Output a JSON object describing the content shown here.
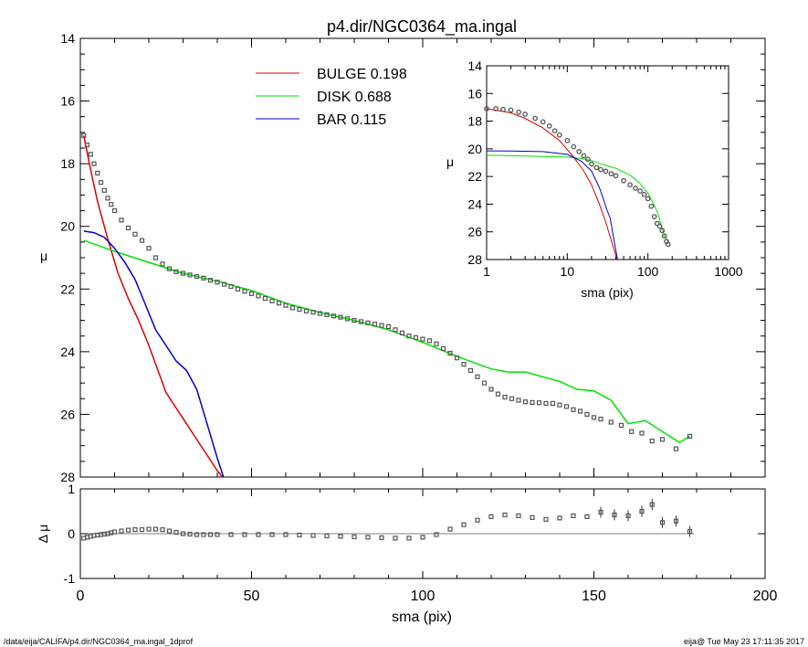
{
  "title": "p4.dir/NGC0364_ma.ingal",
  "footer_left": "/data/eija/CALIFA/p4.dir/NGC0364_ma.ingal_1dprof",
  "footer_right": "eija@  Tue May 23 17:11:35 2017",
  "colors": {
    "bulge": "#dd0000",
    "disk": "#00e000",
    "bar": "#0000cc",
    "data": "#555555",
    "axis": "#000000"
  },
  "chart_data": [
    {
      "type": "line",
      "panel": "main",
      "xlabel": "",
      "ylabel": "μ",
      "xlim": [
        0,
        200
      ],
      "ylim": [
        28,
        14
      ],
      "yticks": [
        "14",
        "16",
        "18",
        "20",
        "22",
        "24",
        "26",
        "28"
      ],
      "legend": [
        {
          "name": "BULGE",
          "value": "0.198",
          "color": "#dd0000"
        },
        {
          "name": "DISK",
          "value": "0.688",
          "color": "#00e000"
        },
        {
          "name": "BAR",
          "value": "0.115",
          "color": "#0000cc"
        }
      ],
      "series": [
        {
          "name": "BULGE",
          "color": "#dd0000",
          "x": [
            1,
            3,
            5,
            8,
            11,
            14,
            17,
            20,
            23,
            25,
            28,
            31,
            34,
            37,
            40,
            41.5
          ],
          "y": [
            17.1,
            18.2,
            19.2,
            20.4,
            21.5,
            22.3,
            23.0,
            23.8,
            24.7,
            25.3,
            25.8,
            26.3,
            26.8,
            27.3,
            27.8,
            28.1
          ]
        },
        {
          "name": "DISK",
          "color": "#00e000",
          "x": [
            1,
            10,
            20,
            30,
            40,
            50,
            60,
            70,
            80,
            90,
            100,
            110,
            120,
            125,
            130,
            140,
            145,
            150,
            155,
            160,
            165,
            170,
            175,
            178
          ],
          "y": [
            20.45,
            20.8,
            21.15,
            21.5,
            21.75,
            22.05,
            22.45,
            22.75,
            23.0,
            23.3,
            23.7,
            24.15,
            24.55,
            24.65,
            24.65,
            24.95,
            25.2,
            25.25,
            25.55,
            26.3,
            26.2,
            26.55,
            26.9,
            26.7
          ]
        },
        {
          "name": "BAR",
          "color": "#0000cc",
          "x": [
            1,
            4,
            7,
            10,
            13,
            16,
            19,
            22,
            25,
            28,
            31,
            34,
            37,
            40,
            41.8
          ],
          "y": [
            20.15,
            20.2,
            20.35,
            20.7,
            21.15,
            21.7,
            22.5,
            23.3,
            23.8,
            24.3,
            24.6,
            25.2,
            26.3,
            27.4,
            28.1
          ]
        },
        {
          "name": "",
          "color": "#555555",
          "marker": "square",
          "x": [
            1,
            2,
            3,
            4,
            5,
            6,
            7,
            8,
            9,
            10,
            12,
            14,
            16,
            18,
            20,
            22,
            24,
            26,
            28,
            30,
            32,
            34,
            36,
            38,
            40,
            42,
            44,
            46,
            48,
            50,
            52,
            54,
            56,
            58,
            60,
            62,
            64,
            66,
            68,
            70,
            72,
            74,
            76,
            78,
            80,
            82,
            84,
            86,
            88,
            90,
            92,
            94,
            96,
            98,
            100,
            102,
            104,
            106,
            108,
            110,
            112,
            114,
            116,
            118,
            120,
            122,
            124,
            126,
            128,
            130,
            132,
            134,
            136,
            138,
            140,
            142,
            144,
            146,
            148,
            150,
            152,
            155,
            158,
            161,
            164,
            167,
            170,
            174,
            178
          ],
          "y": [
            17.1,
            17.4,
            17.7,
            18.0,
            18.3,
            18.6,
            18.85,
            19.1,
            19.3,
            19.5,
            19.8,
            20.05,
            20.25,
            20.45,
            20.7,
            21.0,
            21.2,
            21.35,
            21.45,
            21.5,
            21.55,
            21.6,
            21.65,
            21.72,
            21.78,
            21.85,
            21.92,
            22.0,
            22.07,
            22.15,
            22.22,
            22.3,
            22.38,
            22.45,
            22.52,
            22.6,
            22.65,
            22.7,
            22.74,
            22.78,
            22.82,
            22.86,
            22.9,
            22.95,
            23.0,
            23.04,
            23.08,
            23.12,
            23.16,
            23.2,
            23.3,
            23.4,
            23.5,
            23.55,
            23.6,
            23.65,
            23.75,
            23.9,
            24.05,
            24.2,
            24.4,
            24.6,
            24.8,
            25.0,
            25.2,
            25.35,
            25.45,
            25.5,
            25.55,
            25.6,
            25.62,
            25.63,
            25.65,
            25.65,
            25.7,
            25.75,
            25.85,
            25.9,
            26.0,
            26.1,
            26.15,
            26.25,
            26.35,
            26.55,
            26.6,
            26.85,
            26.8,
            27.1,
            26.7
          ]
        }
      ]
    },
    {
      "type": "line",
      "panel": "inset",
      "xlabel": "sma (pix)",
      "ylabel": "μ",
      "xscale": "log",
      "xlim": [
        1,
        1000
      ],
      "ylim": [
        28,
        14
      ],
      "xticks": [
        "1",
        "10",
        "100",
        "1000"
      ],
      "yticks": [
        "14",
        "16",
        "18",
        "20",
        "22",
        "24",
        "26",
        "28"
      ],
      "series": [
        {
          "name": "BULGE",
          "color": "#dd0000",
          "x": [
            1,
            2,
            3,
            5,
            8,
            12,
            16,
            20,
            25,
            30,
            35,
            40,
            42
          ],
          "y": [
            17.1,
            17.4,
            17.8,
            18.5,
            19.4,
            20.6,
            21.6,
            22.6,
            24.0,
            25.3,
            26.6,
            27.7,
            28.1
          ]
        },
        {
          "name": "DISK",
          "color": "#00e000",
          "x": [
            1,
            2,
            5,
            10,
            15,
            20,
            25,
            30,
            40,
            60,
            80,
            100,
            130,
            160,
            178
          ],
          "y": [
            20.45,
            20.5,
            20.55,
            20.6,
            20.7,
            20.85,
            21.05,
            21.2,
            21.4,
            21.9,
            22.5,
            23.2,
            24.5,
            26.3,
            26.7
          ]
        },
        {
          "name": "BAR",
          "color": "#0000cc",
          "x": [
            1,
            2,
            5,
            10,
            15,
            20,
            25,
            28,
            31,
            34,
            38,
            42
          ],
          "y": [
            20.15,
            20.16,
            20.2,
            20.4,
            20.9,
            21.6,
            22.8,
            23.6,
            24.4,
            25.0,
            26.6,
            28.1
          ]
        },
        {
          "name": "",
          "color": "#555555",
          "marker": "circle",
          "x": [
            1,
            1.3,
            1.6,
            2,
            2.5,
            3,
            4,
            5,
            6,
            7,
            8,
            10,
            12,
            14,
            16,
            18,
            20,
            23,
            26,
            30,
            35,
            40,
            50,
            60,
            70,
            80,
            90,
            100,
            110,
            120,
            130,
            140,
            150,
            160,
            170,
            178
          ],
          "y": [
            17.1,
            17.1,
            17.15,
            17.2,
            17.35,
            17.5,
            17.8,
            18.05,
            18.35,
            18.7,
            19.0,
            19.4,
            19.85,
            20.2,
            20.5,
            20.75,
            21.1,
            21.35,
            21.5,
            21.62,
            21.8,
            21.95,
            22.3,
            22.6,
            22.85,
            23.05,
            23.3,
            23.6,
            24.15,
            24.9,
            25.4,
            25.6,
            25.9,
            26.3,
            26.7,
            26.9
          ]
        }
      ]
    },
    {
      "type": "scatter",
      "panel": "residual",
      "xlabel": "sma (pix)",
      "ylabel": "Δ μ",
      "xlim": [
        0,
        200
      ],
      "ylim": [
        -1.0,
        1.0
      ],
      "xticks": [
        "0",
        "50",
        "100",
        "150",
        "200"
      ],
      "yticks": [
        "-1",
        "0",
        "1"
      ],
      "series": [
        {
          "name": "",
          "color": "#555555",
          "marker": "square",
          "x": [
            1,
            2,
            3,
            4,
            5,
            6,
            7,
            8,
            9,
            10,
            12,
            14,
            16,
            18,
            20,
            22,
            24,
            26,
            28,
            30,
            32,
            34,
            36,
            38,
            40,
            44,
            48,
            52,
            56,
            60,
            64,
            68,
            72,
            76,
            80,
            84,
            88,
            92,
            96,
            100,
            104,
            108,
            112,
            116,
            120,
            124,
            128,
            132,
            136,
            140,
            144,
            148,
            152,
            156,
            160,
            164,
            167,
            170,
            174,
            178
          ],
          "y": [
            -0.1,
            -0.08,
            -0.06,
            -0.04,
            -0.03,
            -0.02,
            -0.01,
            0.0,
            0.02,
            0.04,
            0.06,
            0.08,
            0.09,
            0.09,
            0.1,
            0.1,
            0.09,
            0.06,
            0.03,
            0.0,
            -0.01,
            -0.02,
            -0.02,
            -0.02,
            -0.02,
            -0.02,
            -0.02,
            -0.02,
            -0.02,
            -0.02,
            -0.03,
            -0.04,
            -0.05,
            -0.06,
            -0.07,
            -0.08,
            -0.09,
            -0.1,
            -0.1,
            -0.08,
            -0.02,
            0.1,
            0.2,
            0.3,
            0.38,
            0.42,
            0.4,
            0.36,
            0.32,
            0.35,
            0.4,
            0.38,
            0.48,
            0.42,
            0.4,
            0.5,
            0.65,
            0.25,
            0.28,
            0.05
          ]
        }
      ]
    }
  ]
}
